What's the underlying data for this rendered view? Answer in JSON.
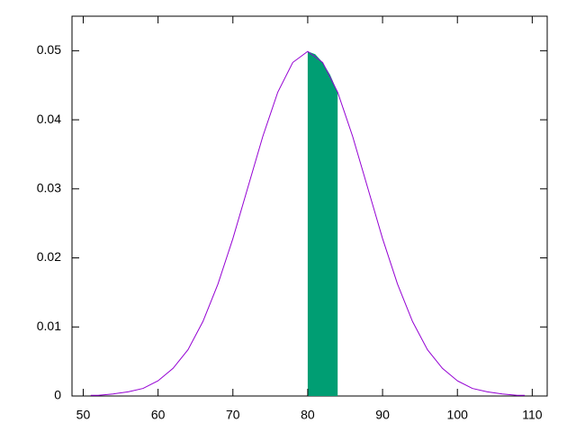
{
  "chart_data": {
    "type": "line",
    "x": [
      51,
      52,
      54,
      56,
      58,
      60,
      62,
      64,
      66,
      68,
      70,
      72,
      74,
      76,
      78,
      80,
      82,
      84,
      86,
      88,
      90,
      92,
      94,
      96,
      98,
      100,
      102,
      104,
      106,
      108,
      109
    ],
    "series": [
      {
        "color": "#9400d3",
        "values": [
          0.0001,
          0.0001,
          0.0003,
          0.0006,
          0.0011,
          0.0022,
          0.004,
          0.0067,
          0.0108,
          0.0162,
          0.0228,
          0.0302,
          0.0376,
          0.044,
          0.0483,
          0.0499,
          0.0483,
          0.044,
          0.0376,
          0.0302,
          0.0228,
          0.0162,
          0.0108,
          0.0067,
          0.004,
          0.0022,
          0.0011,
          0.0006,
          0.0003,
          0.0001,
          0.0001
        ]
      }
    ],
    "shaded_area": {
      "color": "#009e73",
      "x": [
        80,
        81,
        82,
        83,
        84
      ],
      "values": [
        0.0499,
        0.0495,
        0.0483,
        0.0465,
        0.044
      ]
    },
    "xlim": [
      48.5,
      112
    ],
    "ylim": [
      0,
      0.055
    ],
    "xticks": [
      50,
      60,
      70,
      80,
      90,
      100,
      110
    ],
    "yticks": [
      0,
      0.01,
      0.02,
      0.03,
      0.04,
      0.05
    ]
  }
}
